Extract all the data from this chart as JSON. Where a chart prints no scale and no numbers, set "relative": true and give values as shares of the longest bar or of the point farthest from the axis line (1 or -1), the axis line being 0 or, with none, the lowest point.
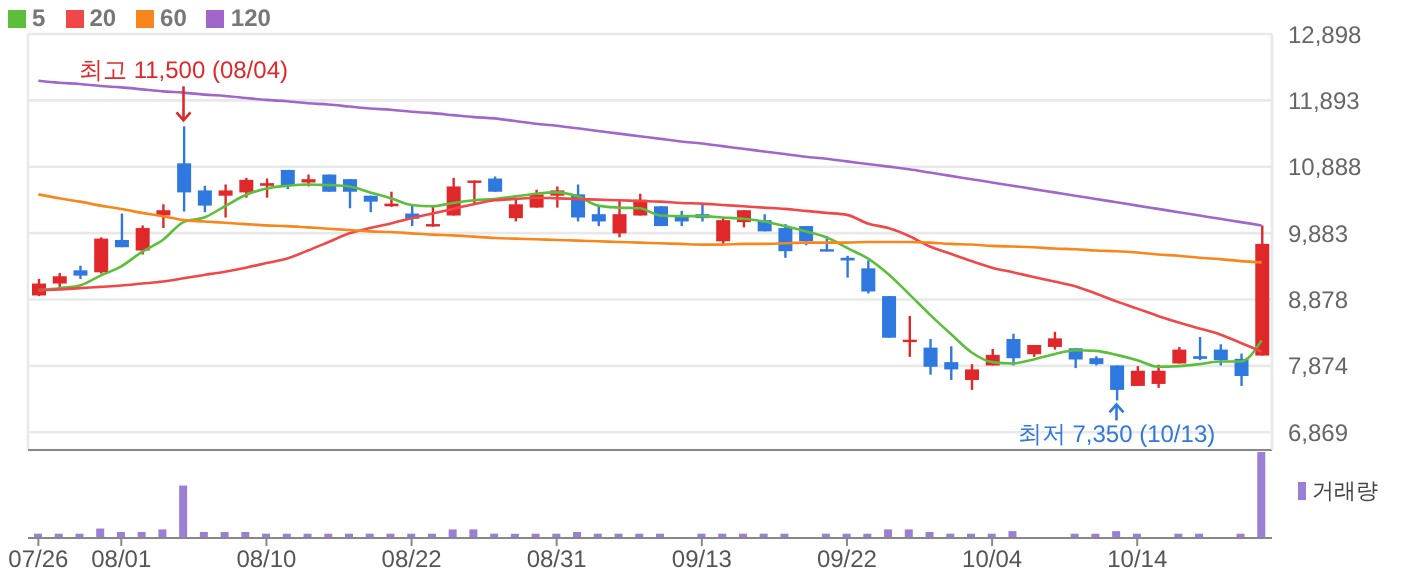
{
  "chart_data": [
    {
      "type": "candlestick",
      "categories": [
        null,
        null,
        null,
        null,
        null,
        null,
        null,
        null,
        null,
        null,
        null,
        null,
        null,
        null,
        null,
        null,
        null,
        null,
        null,
        null,
        null,
        null,
        null,
        null,
        null,
        null,
        null,
        null,
        null,
        null,
        null,
        null,
        null,
        null,
        null,
        null,
        null,
        null,
        null,
        null,
        null,
        null,
        null,
        null,
        null,
        null,
        null,
        null,
        null,
        null,
        null,
        null,
        null,
        null,
        null,
        null,
        null,
        null,
        null,
        null
      ],
      "ohlc": [
        [
          8940,
          9190,
          8930,
          9120
        ],
        [
          9120,
          9280,
          9050,
          9230
        ],
        [
          9320,
          9390,
          9190,
          9240
        ],
        [
          9290,
          9820,
          9270,
          9800
        ],
        [
          9780,
          10180,
          9670,
          9670
        ],
        [
          9620,
          10000,
          9560,
          9960
        ],
        [
          10150,
          10320,
          9960,
          10230
        ],
        [
          10940,
          11500,
          10210,
          10500
        ],
        [
          10530,
          10600,
          10200,
          10300
        ],
        [
          10450,
          10620,
          10120,
          10530
        ],
        [
          10500,
          10720,
          10420,
          10690
        ],
        [
          10600,
          10710,
          10420,
          10640
        ],
        [
          10840,
          10840,
          10550,
          10600
        ],
        [
          10650,
          10770,
          10590,
          10700
        ],
        [
          10770,
          10770,
          10510,
          10510
        ],
        [
          10700,
          10700,
          10260,
          10510
        ],
        [
          10450,
          10450,
          10200,
          10360
        ],
        [
          10290,
          10510,
          10280,
          10330
        ],
        [
          10180,
          10320,
          9990,
          10100
        ],
        [
          10000,
          10300,
          9980,
          10020
        ],
        [
          10150,
          10720,
          10150,
          10590
        ],
        [
          10660,
          10680,
          10340,
          10680
        ],
        [
          10710,
          10740,
          10510,
          10510
        ],
        [
          10110,
          10420,
          10060,
          10320
        ],
        [
          10270,
          10540,
          10270,
          10470
        ],
        [
          10450,
          10590,
          10270,
          10530
        ],
        [
          10470,
          10620,
          10060,
          10120
        ],
        [
          10170,
          10300,
          9990,
          10060
        ],
        [
          9880,
          10380,
          9820,
          10170
        ],
        [
          10150,
          10480,
          10150,
          10390
        ],
        [
          10290,
          10290,
          9990,
          9990
        ],
        [
          10140,
          10220,
          9990,
          10060
        ],
        [
          10170,
          10320,
          10060,
          10110
        ],
        [
          9760,
          10120,
          9700,
          10080
        ],
        [
          10050,
          10230,
          9970,
          10230
        ],
        [
          10080,
          10170,
          9910,
          9910
        ],
        [
          9960,
          10020,
          9510,
          9610
        ],
        [
          9990,
          9990,
          9700,
          9760
        ],
        [
          9640,
          9840,
          9610,
          9610
        ],
        [
          9510,
          9540,
          9210,
          9470
        ],
        [
          9350,
          9470,
          8970,
          9000
        ],
        [
          8930,
          8930,
          8300,
          8300
        ],
        [
          8240,
          8630,
          8010,
          8270
        ],
        [
          8150,
          8280,
          7740,
          7860
        ],
        [
          7930,
          8170,
          7660,
          7820
        ],
        [
          7660,
          7900,
          7510,
          7820
        ],
        [
          7880,
          8130,
          7880,
          8040
        ],
        [
          8280,
          8360,
          7880,
          7990
        ],
        [
          8050,
          8190,
          8010,
          8190
        ],
        [
          8160,
          8390,
          8120,
          8290
        ],
        [
          8140,
          8140,
          7840,
          7970
        ],
        [
          7990,
          8020,
          7880,
          7900
        ],
        [
          7880,
          7880,
          7350,
          7510
        ],
        [
          7570,
          7870,
          7570,
          7800
        ],
        [
          7600,
          7890,
          7540,
          7800
        ],
        [
          7910,
          8160,
          7910,
          8120
        ],
        [
          8020,
          8310,
          7960,
          7980
        ],
        [
          8120,
          8200,
          7880,
          7960
        ],
        [
          7980,
          8060,
          7570,
          7720
        ],
        [
          8030,
          10000,
          8030,
          9720
        ]
      ],
      "colors": [
        "#e0282a",
        "#e0282a",
        "#2f78e0",
        "#e0282a",
        "#2f78e0",
        "#e0282a",
        "#e0282a",
        "#2f78e0",
        "#2f78e0",
        "#e0282a",
        "#e0282a",
        "#e0282a",
        "#2f78e0",
        "#e0282a",
        "#2f78e0",
        "#2f78e0",
        "#2f78e0",
        "#e0282a",
        "#2f78e0",
        "#e0282a",
        "#e0282a",
        "#e0282a",
        "#2f78e0",
        "#e0282a",
        "#e0282a",
        "#e0282a",
        "#2f78e0",
        "#2f78e0",
        "#e0282a",
        "#e0282a",
        "#2f78e0",
        "#2f78e0",
        "#2f78e0",
        "#e0282a",
        "#e0282a",
        "#2f78e0",
        "#2f78e0",
        "#2f78e0",
        "#2f78e0",
        "#2f78e0",
        "#2f78e0",
        "#2f78e0",
        "#e0282a",
        "#2f78e0",
        "#2f78e0",
        "#e0282a",
        "#e0282a",
        "#2f78e0",
        "#e0282a",
        "#e0282a",
        "#2f78e0",
        "#2f78e0",
        "#2f78e0",
        "#e0282a",
        "#e0282a",
        "#e0282a",
        "#2f78e0",
        "#2f78e0",
        "#2f78e0",
        "#e0282a"
      ],
      "series": [
        {
          "name": "5",
          "type": "line",
          "color": "#5bbf3c",
          "values": [
            9020,
            9050,
            9090,
            9240,
            9380,
            9600,
            9780,
            10050,
            10120,
            10290,
            10460,
            10560,
            10600,
            10620,
            10610,
            10590,
            10500,
            10410,
            10310,
            10290,
            10340,
            10380,
            10400,
            10440,
            10480,
            10500,
            10440,
            10300,
            10270,
            10260,
            10150,
            10140,
            10140,
            10120,
            10100,
            10060,
            9990,
            9910,
            9820,
            9660,
            9500,
            9260,
            8960,
            8650,
            8360,
            8080,
            7930,
            7910,
            7970,
            8050,
            8110,
            8100,
            8040,
            7960,
            7860,
            7870,
            7900,
            7940,
            7940,
            8260
          ]
        },
        {
          "name": "20",
          "type": "line",
          "color": "#f04848",
          "values": [
            9020,
            9030,
            9050,
            9070,
            9090,
            9120,
            9150,
            9200,
            9250,
            9300,
            9360,
            9430,
            9500,
            9620,
            9750,
            9880,
            9960,
            10030,
            10110,
            10180,
            10250,
            10320,
            10380,
            10400,
            10420,
            10410,
            10400,
            10390,
            10380,
            10370,
            10360,
            10340,
            10330,
            10310,
            10290,
            10270,
            10250,
            10220,
            10190,
            10160,
            10030,
            9960,
            9840,
            9680,
            9570,
            9460,
            9360,
            9290,
            9220,
            9150,
            9080,
            8970,
            8850,
            8740,
            8630,
            8530,
            8440,
            8350,
            8220,
            8090
          ]
        },
        {
          "name": "60",
          "type": "line",
          "color": "#f7871c",
          "values": [
            10470,
            10410,
            10360,
            10300,
            10250,
            10190,
            10140,
            10080,
            10060,
            10040,
            10020,
            10000,
            9990,
            9970,
            9950,
            9930,
            9910,
            9900,
            9880,
            9860,
            9850,
            9830,
            9810,
            9800,
            9790,
            9780,
            9770,
            9760,
            9750,
            9740,
            9730,
            9720,
            9710,
            9710,
            9720,
            9720,
            9730,
            9740,
            9740,
            9740,
            9750,
            9750,
            9750,
            9740,
            9720,
            9710,
            9690,
            9680,
            9670,
            9650,
            9640,
            9620,
            9610,
            9590,
            9560,
            9540,
            9510,
            9490,
            9460,
            9440
          ]
        },
        {
          "name": "120",
          "type": "line",
          "color": "#a066cc",
          "values": [
            12190,
            12160,
            12140,
            12110,
            12090,
            12060,
            12030,
            12010,
            11980,
            11960,
            11930,
            11900,
            11880,
            11850,
            11830,
            11800,
            11770,
            11750,
            11720,
            11700,
            11670,
            11640,
            11620,
            11580,
            11540,
            11510,
            11470,
            11430,
            11390,
            11350,
            11310,
            11270,
            11240,
            11200,
            11160,
            11120,
            11080,
            11040,
            11010,
            10970,
            10930,
            10890,
            10850,
            10800,
            10750,
            10700,
            10650,
            10600,
            10550,
            10500,
            10450,
            10400,
            10350,
            10300,
            10250,
            10200,
            10150,
            10100,
            10050,
            10000
          ]
        }
      ],
      "ylim": [
        6600,
        12898
      ],
      "yticks": [
        {
          "value": 6869,
          "label": "6,869"
        },
        {
          "value": 7874,
          "label": "7,874"
        },
        {
          "value": 8878,
          "label": "8,878"
        },
        {
          "value": 9883,
          "label": "9,883"
        },
        {
          "value": 10888,
          "label": "10,888"
        },
        {
          "value": 11893,
          "label": "11,893"
        },
        {
          "value": 12898,
          "label": "12,898"
        }
      ],
      "grid": true,
      "legend": "top left",
      "marker": "none",
      "tick_labels": "y",
      "annotations": [
        {
          "text": "최고 11,500 (08/04)",
          "y": 11500
        },
        {
          "text": "최저 7,350 (10/13)",
          "y": 7350
        }
      ]
    },
    {
      "type": "bar",
      "relative": true,
      "categories": [
        "07/26",
        null,
        null,
        null,
        "08/01",
        null,
        null,
        null,
        null,
        null,
        null,
        "08/10",
        null,
        null,
        null,
        null,
        null,
        null,
        "08/22",
        null,
        null,
        null,
        null,
        null,
        null,
        "08/31",
        null,
        null,
        null,
        null,
        null,
        null,
        "09/13",
        null,
        null,
        null,
        null,
        null,
        null,
        "09/22",
        null,
        null,
        null,
        null,
        null,
        null,
        "10/04",
        null,
        null,
        null,
        null,
        null,
        null,
        "10/14",
        null,
        null,
        null,
        null,
        null,
        null
      ],
      "series": [
        {
          "name": "거래량",
          "color": "#9b7fd4",
          "values": [
            0.05,
            0.05,
            0.05,
            0.11,
            0.07,
            0.07,
            0.1,
            0.61,
            0.07,
            0.07,
            0.07,
            0.05,
            0.05,
            0.05,
            0.05,
            0.05,
            0.05,
            0.05,
            0.05,
            0.05,
            0.1,
            0.1,
            0.05,
            0.05,
            0.05,
            0.05,
            0.07,
            0.05,
            0.05,
            0.05,
            0.05,
            0,
            0.05,
            0.05,
            0.05,
            0.05,
            0.05,
            0,
            0.05,
            0.05,
            0.05,
            0.1,
            0.1,
            0.07,
            0.05,
            0.05,
            0.05,
            0.08,
            0,
            0,
            0.05,
            0.05,
            0.08,
            0.05,
            0,
            0.05,
            0.05,
            0,
            0.05,
            1
          ]
        }
      ],
      "legend": "top right",
      "tick_labels": "x"
    }
  ]
}
